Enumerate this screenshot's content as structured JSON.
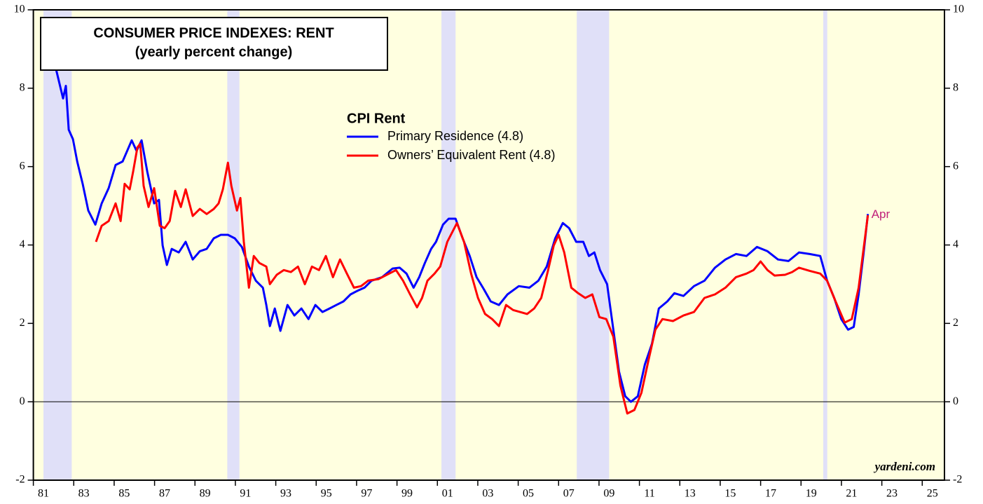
{
  "chart_data": {
    "type": "line",
    "title": "CONSUMER PRICE INDEXES: RENT",
    "subtitle": "(yearly percent change)",
    "legend_title": "CPI Rent",
    "annotation": "Apr",
    "credit": "yardeni.com",
    "background": "#ffffe0",
    "recession_color": "#e0e0f8",
    "recessions": [
      [
        1981.5,
        1982.9
      ],
      [
        1990.6,
        1991.2
      ],
      [
        2001.2,
        2001.9
      ],
      [
        2007.9,
        2009.5
      ],
      [
        2020.1,
        2020.3
      ]
    ],
    "xlim": [
      1981,
      2026.1
    ],
    "ylim": [
      -2,
      10
    ],
    "y2lim": [
      -2,
      10
    ],
    "yticks": [
      -2,
      0,
      2,
      4,
      6,
      8,
      10
    ],
    "y2ticks": [
      -2,
      0,
      2,
      4,
      6,
      8,
      10
    ],
    "xticks": [
      {
        "value": 1981,
        "label": "81"
      },
      {
        "value": 1983,
        "label": "83"
      },
      {
        "value": 1985,
        "label": "85"
      },
      {
        "value": 1987,
        "label": "87"
      },
      {
        "value": 1989,
        "label": "89"
      },
      {
        "value": 1991,
        "label": "91"
      },
      {
        "value": 1993,
        "label": "93"
      },
      {
        "value": 1995,
        "label": "95"
      },
      {
        "value": 1997,
        "label": "97"
      },
      {
        "value": 1999,
        "label": "99"
      },
      {
        "value": 2001,
        "label": "01"
      },
      {
        "value": 2003,
        "label": "03"
      },
      {
        "value": 2005,
        "label": "05"
      },
      {
        "value": 2007,
        "label": "07"
      },
      {
        "value": 2009,
        "label": "09"
      },
      {
        "value": 2011,
        "label": "11"
      },
      {
        "value": 2013,
        "label": "13"
      },
      {
        "value": 2015,
        "label": "15"
      },
      {
        "value": 2017,
        "label": "17"
      },
      {
        "value": 2019,
        "label": "19"
      },
      {
        "value": 2021,
        "label": "21"
      },
      {
        "value": 2023,
        "label": "23"
      },
      {
        "value": 2025,
        "label": "25"
      }
    ],
    "series": [
      {
        "name": "Primary Residence (4.8)",
        "color": "#0000ff",
        "x": [
          1982.12,
          1982.47,
          1982.61,
          1982.75,
          1982.96,
          1983.17,
          1983.44,
          1983.72,
          1984.07,
          1984.38,
          1984.73,
          1985.07,
          1985.42,
          1985.87,
          1986.11,
          1986.36,
          1986.64,
          1986.98,
          1987.22,
          1987.4,
          1987.61,
          1987.85,
          1988.2,
          1988.54,
          1988.89,
          1989.24,
          1989.58,
          1989.93,
          1990.28,
          1990.63,
          1990.97,
          1991.32,
          1991.67,
          1992.01,
          1992.36,
          1992.53,
          1992.71,
          1992.95,
          1993.23,
          1993.58,
          1993.92,
          1994.27,
          1994.62,
          1994.96,
          1995.31,
          1995.66,
          1996.0,
          1996.35,
          1996.7,
          1997.04,
          1997.39,
          1997.74,
          1998.26,
          1998.78,
          1999.13,
          1999.47,
          1999.82,
          2000.1,
          2000.38,
          2000.69,
          2000.93,
          2001.28,
          2001.56,
          2001.9,
          2002.25,
          2002.6,
          2002.94,
          2003.29,
          2003.64,
          2004.05,
          2004.47,
          2005.03,
          2005.55,
          2006.0,
          2006.41,
          2006.83,
          2007.21,
          2007.52,
          2007.87,
          2008.22,
          2008.5,
          2008.77,
          2009.05,
          2009.4,
          2009.71,
          2009.99,
          2010.3,
          2010.58,
          2010.92,
          2011.27,
          2011.62,
          2011.96,
          2012.38,
          2012.73,
          2013.18,
          2013.7,
          2014.22,
          2014.74,
          2015.26,
          2015.78,
          2016.3,
          2016.82,
          2017.34,
          2017.86,
          2018.38,
          2018.9,
          2019.43,
          2019.95,
          2020.29,
          2020.64,
          2020.99,
          2021.33,
          2021.61,
          2021.85,
          2022.1,
          2022.31
        ],
        "values": [
          8.49,
          7.74,
          8.06,
          6.94,
          6.7,
          6.13,
          5.56,
          4.88,
          4.52,
          5.06,
          5.45,
          6.04,
          6.13,
          6.67,
          6.4,
          6.67,
          5.87,
          5.06,
          5.15,
          3.99,
          3.49,
          3.9,
          3.81,
          4.08,
          3.63,
          3.84,
          3.9,
          4.17,
          4.26,
          4.26,
          4.17,
          3.95,
          3.45,
          3.09,
          2.91,
          2.47,
          1.93,
          2.38,
          1.81,
          2.47,
          2.2,
          2.38,
          2.11,
          2.47,
          2.29,
          2.38,
          2.47,
          2.56,
          2.74,
          2.83,
          2.91,
          3.09,
          3.18,
          3.4,
          3.42,
          3.27,
          2.91,
          3.18,
          3.54,
          3.9,
          4.08,
          4.52,
          4.67,
          4.67,
          4.17,
          3.72,
          3.18,
          2.88,
          2.56,
          2.47,
          2.74,
          2.95,
          2.91,
          3.09,
          3.45,
          4.17,
          4.56,
          4.43,
          4.08,
          4.08,
          3.72,
          3.81,
          3.36,
          3.0,
          1.84,
          0.77,
          0.14,
          0.0,
          0.14,
          0.95,
          1.48,
          2.38,
          2.56,
          2.77,
          2.7,
          2.95,
          3.09,
          3.42,
          3.63,
          3.77,
          3.72,
          3.95,
          3.84,
          3.63,
          3.59,
          3.81,
          3.77,
          3.72,
          3.09,
          2.65,
          2.11,
          1.84,
          1.91,
          2.74,
          3.81,
          4.79
        ]
      },
      {
        "name": "Owners’ Equivalent Rent (4.8)",
        "color": "#ff0000",
        "x": [
          1984.1,
          1984.38,
          1984.73,
          1985.07,
          1985.32,
          1985.52,
          1985.77,
          1985.94,
          1986.15,
          1986.29,
          1986.46,
          1986.7,
          1986.98,
          1987.26,
          1987.5,
          1987.75,
          1988.02,
          1988.3,
          1988.54,
          1988.89,
          1989.24,
          1989.58,
          1989.93,
          1990.17,
          1990.38,
          1990.63,
          1990.8,
          1991.08,
          1991.25,
          1991.42,
          1991.67,
          1991.91,
          1992.19,
          1992.53,
          1992.71,
          1993.05,
          1993.4,
          1993.75,
          1994.1,
          1994.44,
          1994.79,
          1995.14,
          1995.48,
          1995.83,
          1996.18,
          1996.52,
          1996.87,
          1997.22,
          1997.57,
          1998.09,
          1998.61,
          1998.95,
          1999.3,
          1999.65,
          1999.99,
          2000.24,
          2000.51,
          2000.86,
          2001.14,
          2001.49,
          2001.97,
          2002.32,
          2002.67,
          2003.01,
          2003.36,
          2003.71,
          2004.05,
          2004.4,
          2004.75,
          2005.09,
          2005.44,
          2005.79,
          2006.14,
          2006.48,
          2006.76,
          2007.0,
          2007.28,
          2007.63,
          2007.97,
          2008.32,
          2008.67,
          2009.02,
          2009.36,
          2009.71,
          2010.06,
          2010.4,
          2010.75,
          2011.1,
          2011.44,
          2011.79,
          2012.14,
          2012.66,
          2013.18,
          2013.7,
          2014.22,
          2014.74,
          2015.26,
          2015.78,
          2016.3,
          2016.65,
          2017.0,
          2017.34,
          2017.69,
          2018.21,
          2018.56,
          2018.9,
          2019.43,
          2019.95,
          2020.29,
          2020.71,
          2021.16,
          2021.51,
          2021.85,
          2022.31
        ],
        "values": [
          4.08,
          4.49,
          4.61,
          5.06,
          4.61,
          5.56,
          5.42,
          5.87,
          6.49,
          6.58,
          5.51,
          4.97,
          5.45,
          4.49,
          4.43,
          4.61,
          5.38,
          4.97,
          5.42,
          4.74,
          4.92,
          4.79,
          4.92,
          5.06,
          5.42,
          6.1,
          5.51,
          4.88,
          5.2,
          4.08,
          2.91,
          3.72,
          3.54,
          3.45,
          3.0,
          3.24,
          3.36,
          3.31,
          3.45,
          3.0,
          3.45,
          3.36,
          3.72,
          3.18,
          3.63,
          3.27,
          2.91,
          2.95,
          3.09,
          3.13,
          3.27,
          3.36,
          3.09,
          2.74,
          2.41,
          2.65,
          3.09,
          3.27,
          3.45,
          4.08,
          4.56,
          4.08,
          3.27,
          2.65,
          2.24,
          2.11,
          1.93,
          2.47,
          2.34,
          2.29,
          2.24,
          2.38,
          2.65,
          3.36,
          3.99,
          4.26,
          3.81,
          2.91,
          2.77,
          2.65,
          2.74,
          2.16,
          2.11,
          1.66,
          0.41,
          -0.3,
          -0.21,
          0.23,
          1.04,
          1.84,
          2.11,
          2.06,
          2.2,
          2.29,
          2.65,
          2.74,
          2.91,
          3.18,
          3.27,
          3.36,
          3.58,
          3.36,
          3.22,
          3.24,
          3.31,
          3.42,
          3.34,
          3.27,
          3.09,
          2.56,
          2.02,
          2.11,
          2.91,
          4.76
        ]
      }
    ]
  }
}
